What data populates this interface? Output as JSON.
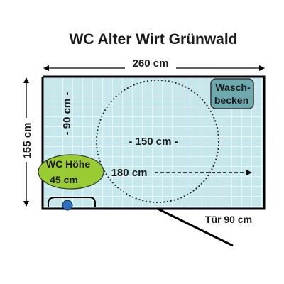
{
  "title": "WC Alter Wirt Grünwald",
  "dimensions": {
    "width_label": "260 cm",
    "height_label": "155 cm",
    "vertical_clearance_label": "- 90 cm -",
    "circle_diameter_label": "- 150 cm -",
    "horizontal_clearance_label": "180 cm"
  },
  "fixtures": {
    "sink_line1": "Wasch-",
    "sink_line2": "becken",
    "wc_line1": "WC Höhe",
    "wc_line2": "45 cm"
  },
  "door": {
    "label": "Tür 90 cm"
  },
  "colors": {
    "floor": "#c6e8ec",
    "tile_line": "#ffffff",
    "wall": "#000000",
    "wc_fill": "#99cc33",
    "sink_fill": "#6fa9b0",
    "wc_seat_fill": "#2f6fbf"
  }
}
